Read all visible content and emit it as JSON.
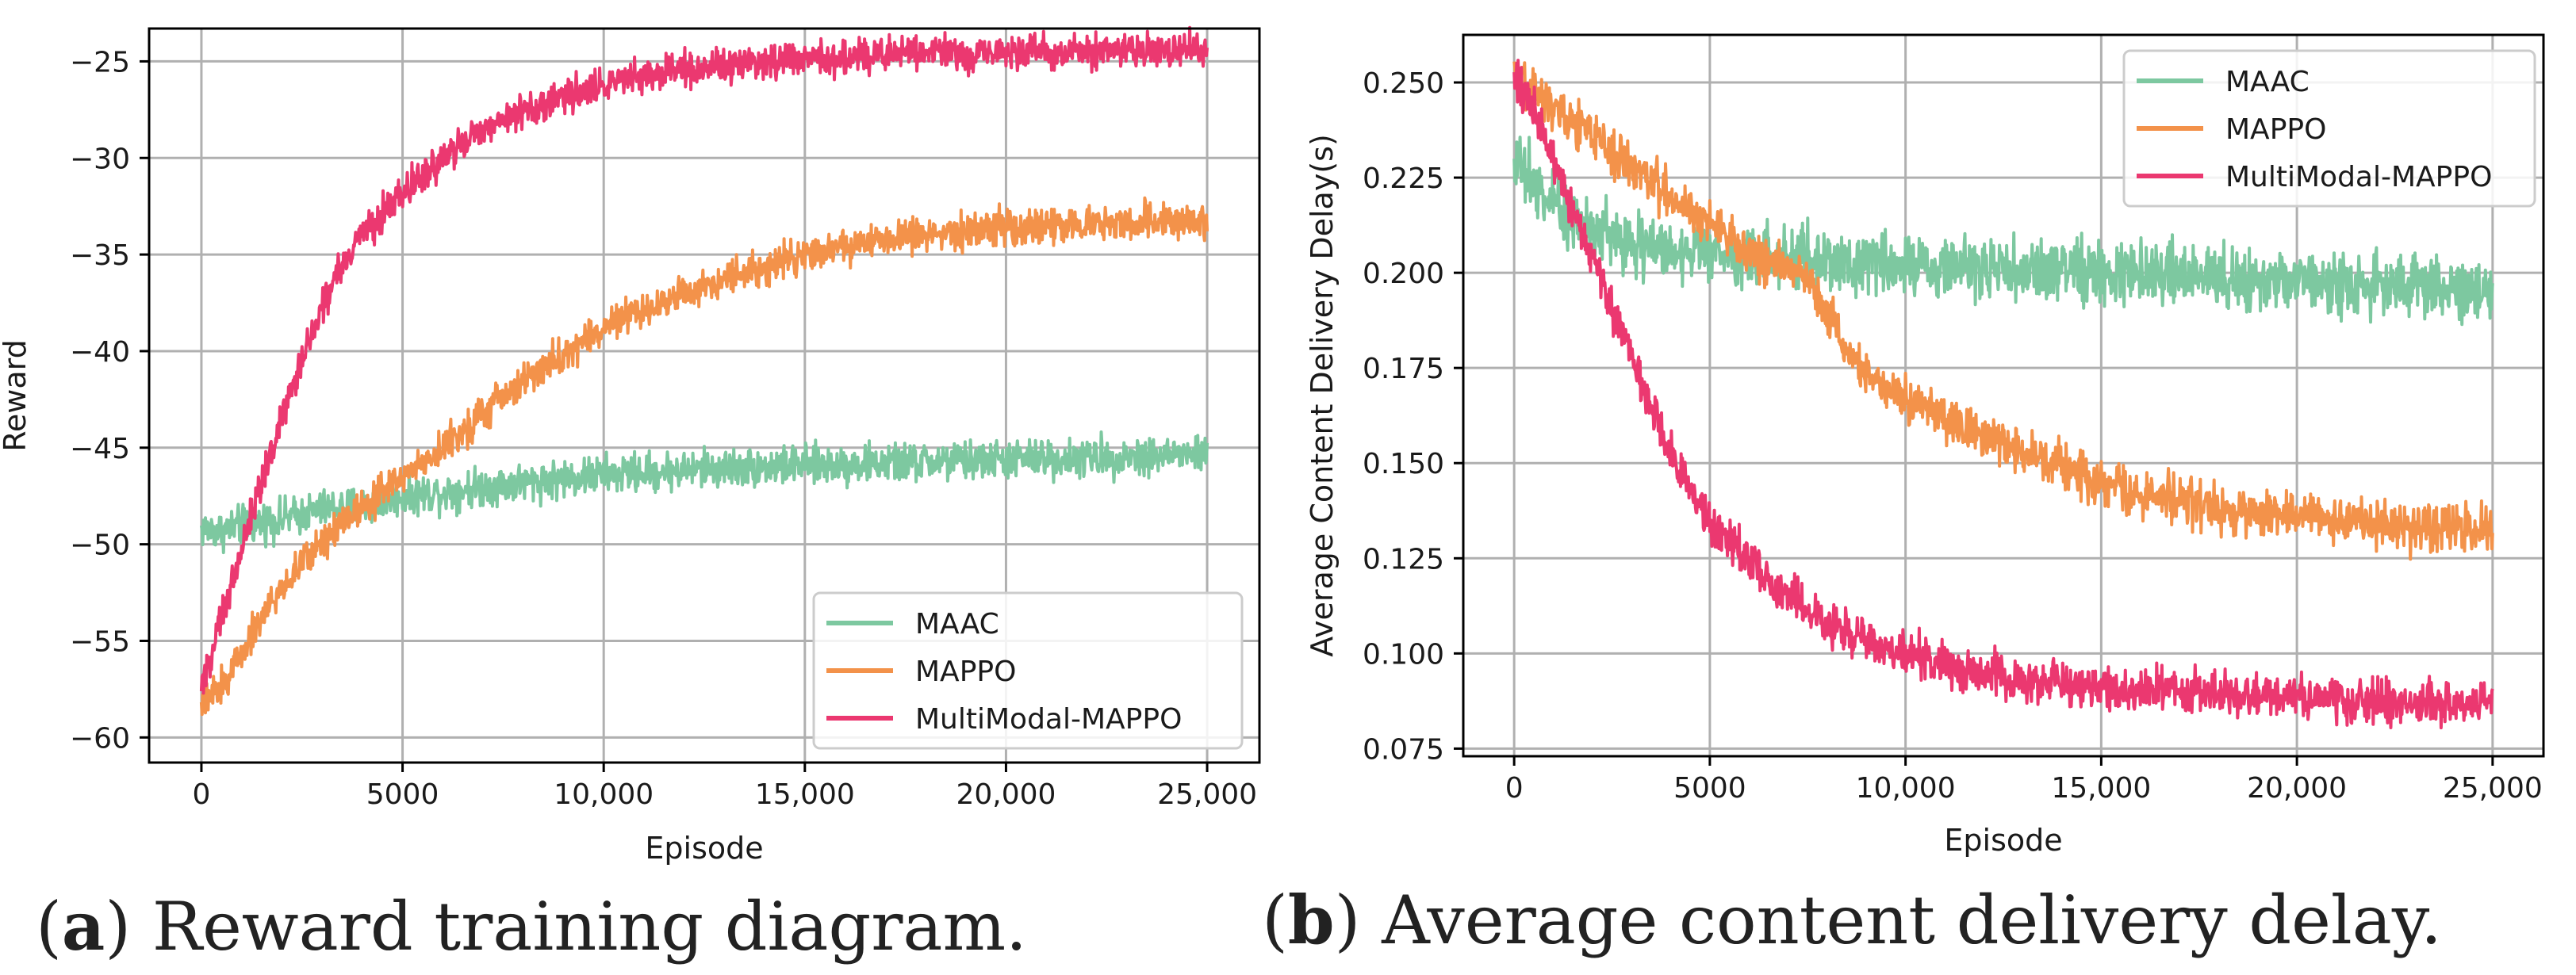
{
  "colors": {
    "MAAC": "#7dc8a0",
    "MAPPO": "#f3924a",
    "MultiModal-MAPPO": "#eb3870"
  },
  "chart_data": [
    {
      "type": "line",
      "panel": "a",
      "title": "",
      "xlabel": "Episode",
      "ylabel": "Reward",
      "xlim": [
        -1300,
        26300
      ],
      "ylim": [
        -61.3,
        -23.3
      ],
      "xticks": [
        0,
        5000,
        10000,
        15000,
        20000,
        25000
      ],
      "xtick_labels": [
        "0",
        "5000",
        "10,000",
        "15,000",
        "20,000",
        "25,000"
      ],
      "yticks": [
        -60,
        -55,
        -50,
        -45,
        -40,
        -35,
        -30,
        -25
      ],
      "ytick_labels": [
        "−60",
        "−55",
        "−50",
        "−45",
        "−40",
        "−35",
        "−30",
        "−25"
      ],
      "grid": true,
      "legend_position": "lower-right",
      "legend": [
        "MAAC",
        "MAPPO",
        "MultiModal-MAPPO"
      ],
      "series": [
        {
          "name": "MAAC",
          "noise": 1.1,
          "x": [
            0,
            500,
            1000,
            2000,
            3000,
            4000,
            5000,
            6000,
            7000,
            8000,
            9000,
            10000,
            12500,
            15000,
            17500,
            20000,
            22500,
            25000
          ],
          "values": [
            -49.2,
            -49.3,
            -49.0,
            -48.7,
            -48.2,
            -48.0,
            -47.5,
            -47.3,
            -47.0,
            -46.8,
            -46.6,
            -46.4,
            -46.1,
            -45.9,
            -45.8,
            -45.6,
            -45.5,
            -45.3
          ]
        },
        {
          "name": "MAPPO",
          "noise": 1.0,
          "x": [
            0,
            300,
            700,
            1000,
            1500,
            2000,
            2500,
            3000,
            3500,
            4000,
            5000,
            6000,
            7000,
            8000,
            9000,
            10000,
            11000,
            12000,
            13000,
            14000,
            15000,
            16000,
            17000,
            18000,
            19000,
            20000,
            21000,
            22000,
            23000,
            24000,
            25000
          ],
          "values": [
            -58.5,
            -57.8,
            -56.8,
            -55.5,
            -53.8,
            -52.3,
            -51.0,
            -49.8,
            -48.8,
            -48.0,
            -46.5,
            -45.0,
            -43.2,
            -41.6,
            -40.2,
            -38.8,
            -37.9,
            -37.0,
            -36.2,
            -35.6,
            -35.0,
            -34.6,
            -34.2,
            -34.0,
            -33.8,
            -33.6,
            -33.5,
            -33.4,
            -33.3,
            -33.2,
            -33.2
          ]
        },
        {
          "name": "MultiModal-MAPPO",
          "noise": 1.0,
          "x": [
            0,
            250,
            500,
            1000,
            1500,
            2000,
            2500,
            3000,
            3500,
            4000,
            5000,
            6000,
            7000,
            8000,
            9000,
            10000,
            11000,
            12000,
            13000,
            14000,
            15000,
            16000,
            17000,
            18000,
            19000,
            20000,
            22500,
            25000
          ],
          "values": [
            -57.2,
            -55.8,
            -53.8,
            -50.2,
            -46.8,
            -43.4,
            -40.3,
            -37.8,
            -35.6,
            -34.0,
            -31.8,
            -30.0,
            -28.6,
            -27.6,
            -26.9,
            -26.3,
            -25.8,
            -25.5,
            -25.2,
            -25.0,
            -24.9,
            -24.8,
            -24.7,
            -24.6,
            -24.6,
            -24.5,
            -24.4,
            -24.4
          ]
        }
      ]
    },
    {
      "type": "line",
      "panel": "b",
      "title": "",
      "xlabel": "Episode",
      "ylabel": "Average Content Delivery Delay(s)",
      "xlim": [
        -1300,
        26300
      ],
      "ylim": [
        0.073,
        0.2625
      ],
      "xticks": [
        0,
        5000,
        10000,
        15000,
        20000,
        25000
      ],
      "xtick_labels": [
        "0",
        "5000",
        "10,000",
        "15,000",
        "20,000",
        "25,000"
      ],
      "yticks": [
        0.075,
        0.1,
        0.125,
        0.15,
        0.175,
        0.2,
        0.225,
        0.25
      ],
      "ytick_labels": [
        "0.075",
        "0.100",
        "0.125",
        "0.150",
        "0.175",
        "0.200",
        "0.225",
        "0.250"
      ],
      "grid": true,
      "legend_position": "top-right",
      "legend": [
        "MAAC",
        "MAPPO",
        "MultiModal-MAPPO"
      ],
      "series": [
        {
          "name": "MAAC",
          "noise": 0.009,
          "x": [
            0,
            200,
            500,
            1000,
            1500,
            2000,
            2500,
            3000,
            4000,
            5000,
            6000,
            7000,
            8000,
            9000,
            10000,
            12500,
            15000,
            17500,
            20000,
            22500,
            25000
          ],
          "values": [
            0.232,
            0.228,
            0.223,
            0.218,
            0.214,
            0.212,
            0.21,
            0.208,
            0.206,
            0.205,
            0.204,
            0.204,
            0.203,
            0.203,
            0.202,
            0.201,
            0.2,
            0.199,
            0.198,
            0.197,
            0.196
          ]
        },
        {
          "name": "MAPPO",
          "noise": 0.0065,
          "x": [
            0,
            500,
            1000,
            2000,
            3000,
            4000,
            5000,
            6000,
            7000,
            7500,
            8000,
            8500,
            9000,
            10000,
            11000,
            12000,
            13000,
            14000,
            15000,
            16000,
            17000,
            18000,
            19000,
            20000,
            21000,
            22000,
            23000,
            24000,
            25000
          ],
          "values": [
            0.25,
            0.248,
            0.244,
            0.236,
            0.228,
            0.22,
            0.213,
            0.205,
            0.201,
            0.199,
            0.19,
            0.18,
            0.173,
            0.167,
            0.162,
            0.157,
            0.153,
            0.149,
            0.145,
            0.142,
            0.14,
            0.138,
            0.137,
            0.136,
            0.135,
            0.134,
            0.133,
            0.133,
            0.132
          ]
        },
        {
          "name": "MultiModal-MAPPO",
          "noise": 0.006,
          "x": [
            0,
            500,
            1000,
            1500,
            2000,
            2500,
            3000,
            3500,
            4000,
            5000,
            6000,
            7000,
            8000,
            9000,
            10000,
            11000,
            12000,
            13000,
            14000,
            15000,
            16000,
            17000,
            18000,
            19000,
            20000,
            21000,
            22000,
            23000,
            24000,
            25000
          ],
          "values": [
            0.252,
            0.243,
            0.23,
            0.217,
            0.204,
            0.191,
            0.178,
            0.164,
            0.152,
            0.135,
            0.124,
            0.115,
            0.108,
            0.103,
            0.1,
            0.097,
            0.095,
            0.093,
            0.092,
            0.091,
            0.0905,
            0.0898,
            0.0892,
            0.0887,
            0.0882,
            0.0878,
            0.0875,
            0.0872,
            0.087,
            0.0868
          ]
        }
      ]
    }
  ],
  "captions": {
    "a": {
      "label": "a",
      "text": "Reward training diagram."
    },
    "b": {
      "label": "b",
      "text": "Average content delivery delay."
    }
  }
}
